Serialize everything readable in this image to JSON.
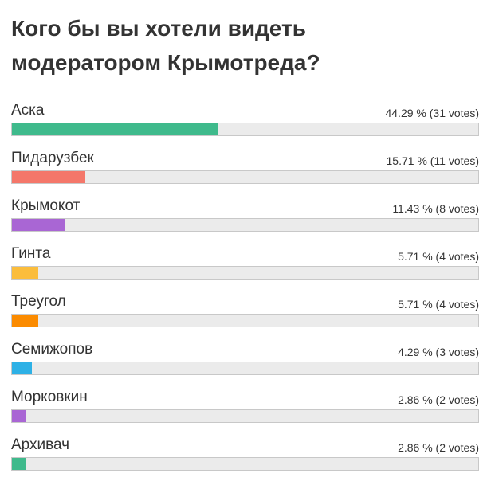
{
  "chart_data": {
    "type": "bar",
    "orientation": "horizontal",
    "title": "Кого бы вы хотели видеть модератором Крымотреда?",
    "categories": [
      "Аска",
      "Пидарузбек",
      "Крымокот",
      "Гинта",
      "Треугол",
      "Семижопов",
      "Морковкин",
      "Архивач"
    ],
    "values": [
      44.29,
      15.71,
      11.43,
      5.71,
      5.71,
      4.29,
      2.86,
      2.86
    ],
    "value_labels": [
      "44.29 % (31 votes)",
      "15.71 % (11 votes)",
      "11.43 % (8 votes)",
      "5.71 % (4 votes)",
      "5.71 % (4 votes)",
      "4.29 % (3 votes)",
      "2.86 % (2 votes)",
      "2.86 % (2 votes)"
    ],
    "colors": [
      "#3fba8c",
      "#f4776a",
      "#a966d4",
      "#fbbd3c",
      "#fb8b00",
      "#2eb1e6",
      "#a966d4",
      "#3fba8c"
    ],
    "xlim": [
      0,
      100
    ]
  }
}
